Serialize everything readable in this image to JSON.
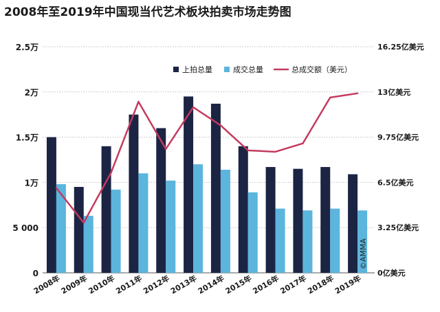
{
  "chart_data": {
    "type": "bar",
    "title": "2008年至2019年中国现当代艺术板块拍卖市场走势图",
    "categories": [
      "2008年",
      "2009年",
      "2010年",
      "2011年",
      "2012年",
      "2013年",
      "2014年",
      "2015年",
      "2016年",
      "2017年",
      "2018年",
      "2019年"
    ],
    "left_axis": {
      "range": [
        0,
        25000
      ],
      "ticks": [
        {
          "value": 0,
          "label": "0"
        },
        {
          "value": 5000,
          "label": "5 000"
        },
        {
          "value": 10000,
          "label": "1万"
        },
        {
          "value": 15000,
          "label": "1.5万"
        },
        {
          "value": 20000,
          "label": "2万"
        },
        {
          "value": 25000,
          "label": "2.5万"
        }
      ]
    },
    "right_axis": {
      "range": [
        0,
        16.25
      ],
      "ticks": [
        {
          "value": 0,
          "label": "0亿美元"
        },
        {
          "value": 3.25,
          "label": "3.25亿美元"
        },
        {
          "value": 6.5,
          "label": "6.5亿美元"
        },
        {
          "value": 9.75,
          "label": "9.75亿美元"
        },
        {
          "value": 13,
          "label": "13亿美元"
        },
        {
          "value": 16.25,
          "label": "16.25亿美元"
        }
      ]
    },
    "series": [
      {
        "name": "上拍总量",
        "type": "bar",
        "axis": "left",
        "color": "#1c2444",
        "values": [
          15000,
          9500,
          14000,
          17500,
          16000,
          19500,
          18700,
          14000,
          11700,
          11500,
          11700,
          10900
        ]
      },
      {
        "name": "成交总量",
        "type": "bar",
        "axis": "left",
        "color": "#5cb5dc",
        "values": [
          9800,
          6300,
          9200,
          11000,
          10200,
          12000,
          11400,
          8900,
          7100,
          6900,
          7100,
          6900
        ]
      },
      {
        "name": "总成交额（美元）",
        "type": "line",
        "axis": "right",
        "color": "#c43a5e",
        "values": [
          6.1,
          3.6,
          7.2,
          12.3,
          8.9,
          11.9,
          10.6,
          8.8,
          8.7,
          9.3,
          12.6,
          12.9
        ]
      }
    ],
    "grid": true,
    "legend": "top-right",
    "watermark": "©AMMA"
  }
}
